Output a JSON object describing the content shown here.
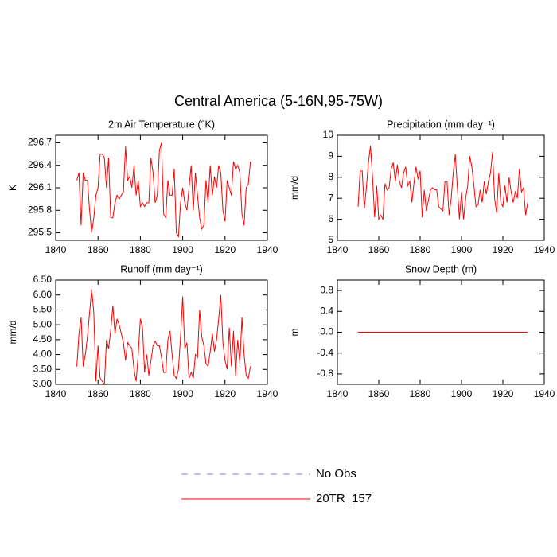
{
  "title": "Central America (5-16N,95-75W)",
  "legend": [
    {
      "name": "No Obs",
      "color": "#8080ff",
      "dashed": true
    },
    {
      "name": "20TR_157",
      "color": "#ff0000",
      "dashed": false
    }
  ],
  "chart_data": [
    {
      "type": "line",
      "title": "2m Air Temperature (°K)",
      "y_label": "K",
      "x": [
        1850,
        1851,
        1852,
        1853,
        1854,
        1855,
        1856,
        1857,
        1858,
        1859,
        1860,
        1861,
        1862,
        1863,
        1864,
        1865,
        1866,
        1867,
        1868,
        1869,
        1870,
        1871,
        1872,
        1873,
        1874,
        1875,
        1876,
        1877,
        1878,
        1879,
        1880,
        1881,
        1882,
        1883,
        1884,
        1885,
        1886,
        1887,
        1888,
        1889,
        1890,
        1891,
        1892,
        1893,
        1894,
        1895,
        1896,
        1897,
        1898,
        1899,
        1900,
        1901,
        1902,
        1903,
        1904,
        1905,
        1906,
        1907,
        1908,
        1909,
        1910,
        1911,
        1912,
        1913,
        1914,
        1915,
        1916,
        1917,
        1918,
        1919,
        1920,
        1921,
        1922,
        1923,
        1924,
        1925,
        1926,
        1927,
        1928,
        1929,
        1930,
        1931,
        1932
      ],
      "series": [
        {
          "color": "#ff0000",
          "values": [
            296.2,
            296.3,
            295.6,
            296.3,
            296.2,
            296.2,
            295.8,
            295.5,
            295.7,
            296.0,
            296.1,
            296.55,
            296.55,
            296.5,
            296.1,
            296.5,
            295.7,
            295.7,
            295.9,
            296.0,
            295.95,
            296.0,
            296.05,
            296.65,
            296.2,
            296.25,
            296.1,
            296.4,
            296.0,
            296.2,
            295.85,
            295.9,
            295.85,
            295.9,
            295.9,
            296.5,
            296.3,
            295.9,
            296.0,
            296.6,
            296.7,
            295.75,
            295.7,
            296.2,
            296.0,
            296.0,
            296.35,
            295.5,
            295.45,
            295.9,
            296.1,
            295.9,
            295.8,
            296.1,
            296.4,
            295.8,
            296.3,
            296.0,
            295.7,
            295.55,
            295.6,
            296.2,
            295.9,
            296.4,
            296.0,
            296.25,
            296.1,
            296.4,
            296.3,
            295.8,
            295.65,
            296.2,
            296.1,
            296.0,
            296.45,
            296.35,
            296.4,
            296.3,
            295.75,
            295.6,
            296.1,
            296.15,
            296.45
          ]
        }
      ],
      "xlim": [
        1840,
        1940
      ],
      "xticks": [
        1840,
        1860,
        1880,
        1900,
        1920,
        1940
      ],
      "ylim": [
        295.4,
        296.8
      ],
      "yticks": [
        295.5,
        295.8,
        296.1,
        296.4,
        296.7
      ]
    },
    {
      "type": "line",
      "title": "Precipitation (mm day⁻¹)",
      "y_label": "mm/d",
      "x": [
        1850,
        1851,
        1852,
        1853,
        1854,
        1855,
        1856,
        1857,
        1858,
        1859,
        1860,
        1861,
        1862,
        1863,
        1864,
        1865,
        1866,
        1867,
        1868,
        1869,
        1870,
        1871,
        1872,
        1873,
        1874,
        1875,
        1876,
        1877,
        1878,
        1879,
        1880,
        1881,
        1882,
        1883,
        1884,
        1885,
        1886,
        1887,
        1888,
        1889,
        1890,
        1891,
        1892,
        1893,
        1894,
        1895,
        1896,
        1897,
        1898,
        1899,
        1900,
        1901,
        1902,
        1903,
        1904,
        1905,
        1906,
        1907,
        1908,
        1909,
        1910,
        1911,
        1912,
        1913,
        1914,
        1915,
        1916,
        1917,
        1918,
        1919,
        1920,
        1921,
        1922,
        1923,
        1924,
        1925,
        1926,
        1927,
        1928,
        1929,
        1930,
        1931,
        1932
      ],
      "series": [
        {
          "color": "#ff0000",
          "values": [
            6.6,
            8.3,
            8.3,
            6.5,
            7.5,
            8.7,
            9.5,
            8.0,
            6.1,
            7.6,
            6.0,
            6.2,
            6.0,
            7.7,
            7.4,
            7.5,
            8.4,
            8.7,
            7.8,
            8.6,
            7.8,
            7.5,
            8.2,
            8.5,
            7.6,
            7.8,
            6.8,
            7.7,
            8.5,
            7.9,
            8.3,
            6.1,
            7.4,
            6.4,
            6.9,
            7.4,
            7.5,
            7.4,
            7.4,
            6.6,
            6.5,
            6.4,
            7.8,
            7.8,
            6.2,
            7.0,
            8.2,
            9.1,
            7.5,
            6.0,
            7.3,
            6.0,
            7.0,
            7.6,
            9.0,
            8.5,
            7.6,
            6.6,
            6.7,
            7.4,
            6.8,
            7.8,
            7.2,
            7.8,
            8.2,
            9.2,
            7.0,
            6.3,
            8.2,
            6.8,
            6.6,
            7.6,
            6.8,
            8.0,
            7.3,
            6.8,
            7.3,
            7.0,
            8.4,
            7.3,
            7.5,
            6.2,
            6.8
          ]
        }
      ],
      "xlim": [
        1840,
        1940
      ],
      "xticks": [
        1840,
        1860,
        1880,
        1900,
        1920,
        1940
      ],
      "ylim": [
        5,
        10
      ],
      "yticks": [
        5,
        6,
        7,
        8,
        9,
        10
      ]
    },
    {
      "type": "line",
      "title": "Runoff (mm day⁻¹)",
      "y_label": "mm/d",
      "x": [
        1850,
        1851,
        1852,
        1853,
        1854,
        1855,
        1856,
        1857,
        1858,
        1859,
        1860,
        1861,
        1862,
        1863,
        1864,
        1865,
        1866,
        1867,
        1868,
        1869,
        1870,
        1871,
        1872,
        1873,
        1874,
        1875,
        1876,
        1877,
        1878,
        1879,
        1880,
        1881,
        1882,
        1883,
        1884,
        1885,
        1886,
        1887,
        1888,
        1889,
        1890,
        1891,
        1892,
        1893,
        1894,
        1895,
        1896,
        1897,
        1898,
        1899,
        1900,
        1901,
        1902,
        1903,
        1904,
        1905,
        1906,
        1907,
        1908,
        1909,
        1910,
        1911,
        1912,
        1913,
        1914,
        1915,
        1916,
        1917,
        1918,
        1919,
        1920,
        1921,
        1922,
        1923,
        1924,
        1925,
        1926,
        1927,
        1928,
        1929,
        1930,
        1931,
        1932
      ],
      "series": [
        {
          "color": "#ff0000",
          "values": [
            3.6,
            4.7,
            5.25,
            3.6,
            4.0,
            4.6,
            5.4,
            6.2,
            5.4,
            3.1,
            4.3,
            3.2,
            3.1,
            3.0,
            4.5,
            4.2,
            4.8,
            5.65,
            4.7,
            5.2,
            5.0,
            4.7,
            4.4,
            3.8,
            4.4,
            4.3,
            4.2,
            3.5,
            3.1,
            4.0,
            5.2,
            4.9,
            3.4,
            4.0,
            3.3,
            3.8,
            4.3,
            4.45,
            4.3,
            4.3,
            3.9,
            3.4,
            3.4,
            4.5,
            4.8,
            4.0,
            3.3,
            3.2,
            3.5,
            4.6,
            5.95,
            4.2,
            4.4,
            3.2,
            3.4,
            3.2,
            4.0,
            3.9,
            5.5,
            4.6,
            4.3,
            3.7,
            3.6,
            4.1,
            4.7,
            4.1,
            4.5,
            5.2,
            6.0,
            4.4,
            3.8,
            3.5,
            4.9,
            3.6,
            4.8,
            3.3,
            4.5,
            3.7,
            5.25,
            4.0,
            3.3,
            3.2,
            3.6
          ]
        }
      ],
      "xlim": [
        1840,
        1940
      ],
      "xticks": [
        1840,
        1860,
        1880,
        1900,
        1920,
        1940
      ],
      "ylim": [
        3,
        6.5
      ],
      "yticks": [
        {
          "value": 3,
          "label": "3.00"
        },
        {
          "value": 3.5,
          "label": "3.50"
        },
        {
          "value": 4,
          "label": "4.00"
        },
        {
          "value": 4.5,
          "label": "4.50"
        },
        {
          "value": 5,
          "label": "5.00"
        },
        {
          "value": 5.5,
          "label": "5.50"
        },
        {
          "value": 6,
          "label": "6.00"
        },
        {
          "value": 6.5,
          "label": "6.50"
        }
      ]
    },
    {
      "type": "line",
      "title": "Snow Depth (m)",
      "y_label": "m",
      "x": [
        1850,
        1851,
        1852,
        1853,
        1854,
        1855,
        1856,
        1857,
        1858,
        1859,
        1860,
        1861,
        1862,
        1863,
        1864,
        1865,
        1866,
        1867,
        1868,
        1869,
        1870,
        1871,
        1872,
        1873,
        1874,
        1875,
        1876,
        1877,
        1878,
        1879,
        1880,
        1881,
        1882,
        1883,
        1884,
        1885,
        1886,
        1887,
        1888,
        1889,
        1890,
        1891,
        1892,
        1893,
        1894,
        1895,
        1896,
        1897,
        1898,
        1899,
        1900,
        1901,
        1902,
        1903,
        1904,
        1905,
        1906,
        1907,
        1908,
        1909,
        1910,
        1911,
        1912,
        1913,
        1914,
        1915,
        1916,
        1917,
        1918,
        1919,
        1920,
        1921,
        1922,
        1923,
        1924,
        1925,
        1926,
        1927,
        1928,
        1929,
        1930,
        1931,
        1932
      ],
      "series": [
        {
          "color": "#ff0000",
          "values": [
            0,
            0,
            0,
            0,
            0,
            0,
            0,
            0,
            0,
            0,
            0,
            0,
            0,
            0,
            0,
            0,
            0,
            0,
            0,
            0,
            0,
            0,
            0,
            0,
            0,
            0,
            0,
            0,
            0,
            0,
            0,
            0,
            0,
            0,
            0,
            0,
            0,
            0,
            0,
            0,
            0,
            0,
            0,
            0,
            0,
            0,
            0,
            0,
            0,
            0,
            0,
            0,
            0,
            0,
            0,
            0,
            0,
            0,
            0,
            0,
            0,
            0,
            0,
            0,
            0,
            0,
            0,
            0,
            0,
            0,
            0,
            0,
            0,
            0,
            0,
            0,
            0,
            0,
            0,
            0,
            0,
            0,
            0
          ]
        }
      ],
      "xlim": [
        1840,
        1940
      ],
      "xticks": [
        1840,
        1860,
        1880,
        1900,
        1920,
        1940
      ],
      "ylim": [
        -1,
        1
      ],
      "yticks": [
        -0.8,
        -0.4,
        {
          "value": 0,
          "label": "0.0"
        },
        0.4,
        0.8
      ]
    }
  ]
}
